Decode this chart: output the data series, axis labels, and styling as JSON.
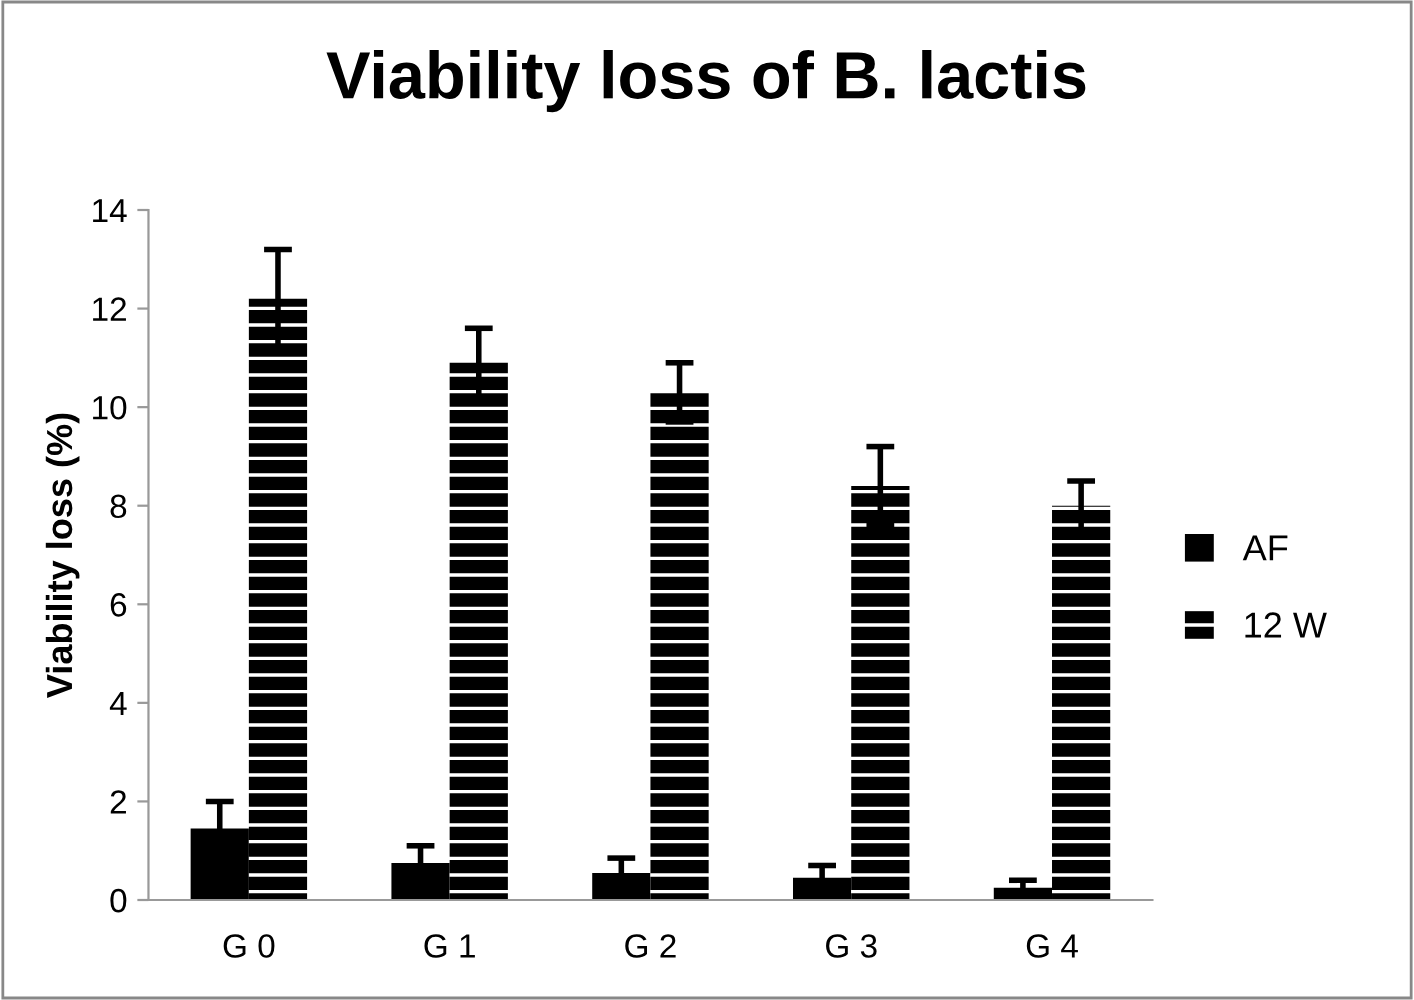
{
  "chart_data": {
    "type": "bar",
    "title": "Viability loss of B. lactis",
    "ylabel": "Viability loss (%)",
    "categories": [
      "G 0",
      "G 1",
      "G 2",
      "G 3",
      "G 4"
    ],
    "series": [
      {
        "name": "AF",
        "color": "#000000",
        "values": [
          1.45,
          0.75,
          0.55,
          0.45,
          0.25
        ],
        "errors": [
          0.55,
          0.35,
          0.3,
          0.25,
          0.15
        ]
      },
      {
        "name": "12 W",
        "color": "#000000",
        "values": [
          12.2,
          10.9,
          10.3,
          8.4,
          8.0
        ],
        "errors": [
          1.0,
          0.7,
          0.6,
          0.8,
          0.5
        ]
      }
    ],
    "ylim": [
      0,
      14
    ],
    "yticks": [
      0,
      2,
      4,
      6,
      8,
      10,
      12,
      14
    ],
    "grid": false,
    "legend": "right"
  }
}
